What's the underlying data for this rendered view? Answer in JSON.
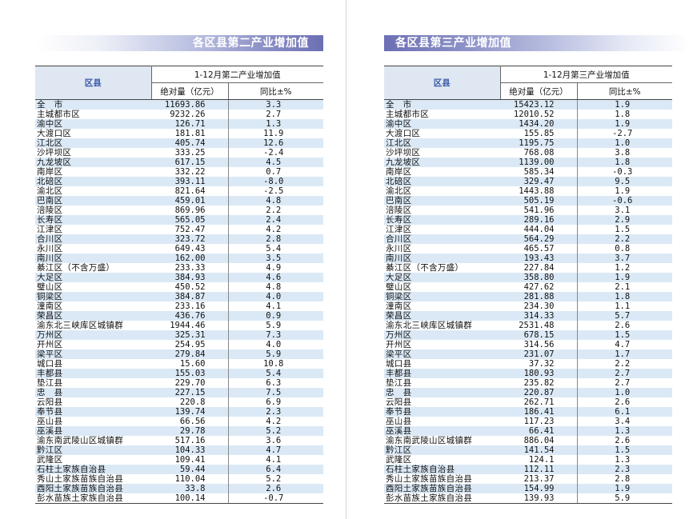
{
  "left": {
    "title": "各区县第二产业增加值",
    "header": {
      "region": "区县",
      "group": "1-12月第二产业增加值",
      "col1": "绝对量（亿元）",
      "col2": "同比±%"
    },
    "rows": [
      [
        "全　市",
        "11693.86",
        "3.3"
      ],
      [
        "主城都市区",
        "9232.26",
        "2.7"
      ],
      [
        "渝中区",
        "126.71",
        "1.3"
      ],
      [
        "大渡口区",
        "181.81",
        "11.9"
      ],
      [
        "江北区",
        "405.74",
        "12.6"
      ],
      [
        "沙坪坝区",
        "333.25",
        "-2.4"
      ],
      [
        "九龙坡区",
        "617.15",
        "4.5"
      ],
      [
        "南岸区",
        "332.22",
        "0.7"
      ],
      [
        "北碚区",
        "393.11",
        "-8.0"
      ],
      [
        "渝北区",
        "821.64",
        "-2.5"
      ],
      [
        "巴南区",
        "459.01",
        "4.8"
      ],
      [
        "涪陵区",
        "869.96",
        "2.2"
      ],
      [
        "长寿区",
        "565.05",
        "2.4"
      ],
      [
        "江津区",
        "752.47",
        "4.2"
      ],
      [
        "合川区",
        "323.72",
        "2.8"
      ],
      [
        "永川区",
        "649.43",
        "5.4"
      ],
      [
        "南川区",
        "162.00",
        "3.5"
      ],
      [
        "綦江区（不含万盛）",
        "233.33",
        "4.9"
      ],
      [
        "大足区",
        "384.93",
        "4.6"
      ],
      [
        "璧山区",
        "450.52",
        "4.8"
      ],
      [
        "铜梁区",
        "384.87",
        "4.0"
      ],
      [
        "潼南区",
        "233.16",
        "4.1"
      ],
      [
        "荣昌区",
        "436.76",
        "0.9"
      ],
      [
        "渝东北三峡库区城镇群",
        "1944.46",
        "5.9"
      ],
      [
        "万州区",
        "325.31",
        "7.3"
      ],
      [
        "开州区",
        "254.95",
        "4.0"
      ],
      [
        "梁平区",
        "279.84",
        "5.9"
      ],
      [
        "城口县",
        "15.60",
        "10.8"
      ],
      [
        "丰都县",
        "155.03",
        "5.4"
      ],
      [
        "垫江县",
        "229.70",
        "6.3"
      ],
      [
        "忠　县",
        "227.15",
        "7.5"
      ],
      [
        "云阳县",
        "220.8",
        "6.9"
      ],
      [
        "奉节县",
        "139.74",
        "2.3"
      ],
      [
        "巫山县",
        "66.56",
        "4.2"
      ],
      [
        "巫溪县",
        "29.78",
        "5.2"
      ],
      [
        "渝东南武陵山区城镇群",
        "517.16",
        "3.6"
      ],
      [
        "黔江区",
        "104.33",
        "4.7"
      ],
      [
        "武隆区",
        "109.41",
        "4.1"
      ],
      [
        "石柱土家族自治县",
        "59.44",
        "6.4"
      ],
      [
        "秀山土家族苗族自治县",
        "110.04",
        "5.2"
      ],
      [
        "酉阳土家族苗族自治县",
        "33.8",
        "2.6"
      ],
      [
        "彭水苗族土家族自治县",
        "100.14",
        "-0.7"
      ]
    ]
  },
  "right": {
    "title": "各区县第三产业增加值",
    "header": {
      "region": "区县",
      "group": "1-12月第三产业增加值",
      "col1": "绝对量（亿元）",
      "col2": "同比±%"
    },
    "rows": [
      [
        "全　市",
        "15423.12",
        "1.9"
      ],
      [
        "主城都市区",
        "12010.52",
        "1.8"
      ],
      [
        "渝中区",
        "1434.20",
        "1.9"
      ],
      [
        "大渡口区",
        "155.85",
        "-2.7"
      ],
      [
        "江北区",
        "1195.75",
        "1.0"
      ],
      [
        "沙坪坝区",
        "768.08",
        "3.8"
      ],
      [
        "九龙坡区",
        "1139.00",
        "1.8"
      ],
      [
        "南岸区",
        "585.34",
        "-0.3"
      ],
      [
        "北碚区",
        "329.47",
        "9.5"
      ],
      [
        "渝北区",
        "1443.88",
        "1.9"
      ],
      [
        "巴南区",
        "505.19",
        "-0.6"
      ],
      [
        "涪陵区",
        "541.96",
        "3.1"
      ],
      [
        "长寿区",
        "289.16",
        "2.9"
      ],
      [
        "江津区",
        "444.04",
        "1.5"
      ],
      [
        "合川区",
        "564.29",
        "2.2"
      ],
      [
        "永川区",
        "465.57",
        "0.8"
      ],
      [
        "南川区",
        "193.43",
        "3.7"
      ],
      [
        "綦江区（不含万盛）",
        "227.84",
        "1.2"
      ],
      [
        "大足区",
        "358.80",
        "1.9"
      ],
      [
        "璧山区",
        "427.62",
        "2.1"
      ],
      [
        "铜梁区",
        "281.88",
        "1.8"
      ],
      [
        "潼南区",
        "234.30",
        "1.1"
      ],
      [
        "荣昌区",
        "314.33",
        "5.7"
      ],
      [
        "渝东北三峡库区城镇群",
        "2531.48",
        "2.6"
      ],
      [
        "万州区",
        "678.15",
        "1.5"
      ],
      [
        "开州区",
        "314.56",
        "4.7"
      ],
      [
        "梁平区",
        "231.07",
        "1.7"
      ],
      [
        "城口县",
        "37.32",
        "2.2"
      ],
      [
        "丰都县",
        "180.93",
        "2.7"
      ],
      [
        "垫江县",
        "235.82",
        "2.7"
      ],
      [
        "忠　县",
        "220.87",
        "1.0"
      ],
      [
        "云阳县",
        "262.71",
        "2.6"
      ],
      [
        "奉节县",
        "186.41",
        "6.1"
      ],
      [
        "巫山县",
        "117.23",
        "3.4"
      ],
      [
        "巫溪县",
        "66.41",
        "1.3"
      ],
      [
        "渝东南武陵山区城镇群",
        "886.04",
        "2.6"
      ],
      [
        "黔江区",
        "141.54",
        "1.5"
      ],
      [
        "武隆区",
        "124.1",
        "1.3"
      ],
      [
        "石柱土家族自治县",
        "112.11",
        "2.3"
      ],
      [
        "秀山土家族苗族自治县",
        "213.37",
        "2.8"
      ],
      [
        "酉阳土家族苗族自治县",
        "154.99",
        "1.9"
      ],
      [
        "彭水苗族土家族自治县",
        "139.93",
        "5.9"
      ]
    ]
  }
}
